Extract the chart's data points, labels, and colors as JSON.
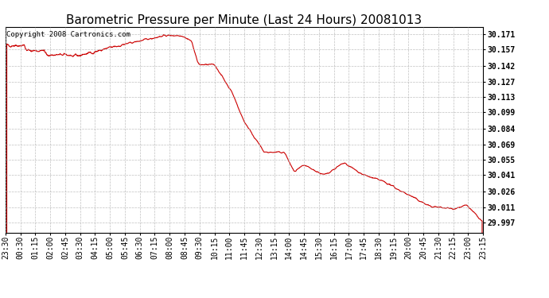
{
  "title": "Barometric Pressure per Minute (Last 24 Hours) 20081013",
  "copyright_text": "Copyright 2008 Cartronics.com",
  "line_color": "#cc0000",
  "background_color": "#ffffff",
  "grid_color": "#b0b0b0",
  "yticks": [
    29.997,
    30.011,
    30.026,
    30.041,
    30.055,
    30.069,
    30.084,
    30.099,
    30.113,
    30.127,
    30.142,
    30.157,
    30.171
  ],
  "ylim": [
    29.988,
    30.178
  ],
  "xtick_labels": [
    "23:30",
    "00:30",
    "01:15",
    "02:00",
    "02:45",
    "03:30",
    "04:15",
    "05:00",
    "05:45",
    "06:30",
    "07:15",
    "08:00",
    "08:45",
    "09:30",
    "10:15",
    "11:00",
    "11:45",
    "12:30",
    "13:15",
    "14:00",
    "14:45",
    "15:30",
    "16:15",
    "17:00",
    "17:45",
    "18:30",
    "19:15",
    "20:00",
    "20:45",
    "21:30",
    "22:15",
    "23:00",
    "23:15"
  ],
  "title_fontsize": 11,
  "tick_fontsize": 7,
  "copyright_fontsize": 6.5,
  "figsize": [
    6.9,
    3.75
  ],
  "dpi": 100
}
